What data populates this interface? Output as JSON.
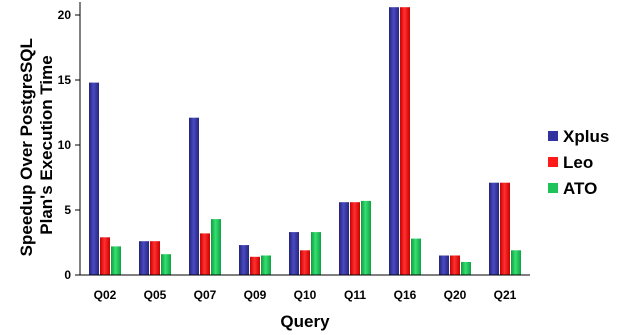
{
  "chart_data": {
    "type": "bar",
    "xlabel": "Query",
    "ylabel_lines": [
      "Speedup Over PostgreSQL",
      "Plan's Execution Time"
    ],
    "categories": [
      "Q02",
      "Q05",
      "Q07",
      "Q09",
      "Q10",
      "Q11",
      "Q16",
      "Q20",
      "Q21"
    ],
    "ylim": [
      0,
      21
    ],
    "yticks": [
      0,
      5,
      10,
      15,
      20
    ],
    "grid": false,
    "legend_position": "right",
    "series": [
      {
        "name": "Xplus",
        "color": "#3333a0",
        "values": [
          14.8,
          2.6,
          12.1,
          2.3,
          3.3,
          5.6,
          20.6,
          1.5,
          7.1
        ]
      },
      {
        "name": "Leo",
        "color": "#ff1a1a",
        "values": [
          2.9,
          2.6,
          3.2,
          1.4,
          1.9,
          5.6,
          20.6,
          1.5,
          7.1
        ]
      },
      {
        "name": "ATO",
        "color": "#1ec45a",
        "values": [
          2.2,
          1.6,
          4.3,
          1.5,
          3.3,
          5.7,
          2.8,
          1.0,
          1.9
        ]
      }
    ]
  }
}
